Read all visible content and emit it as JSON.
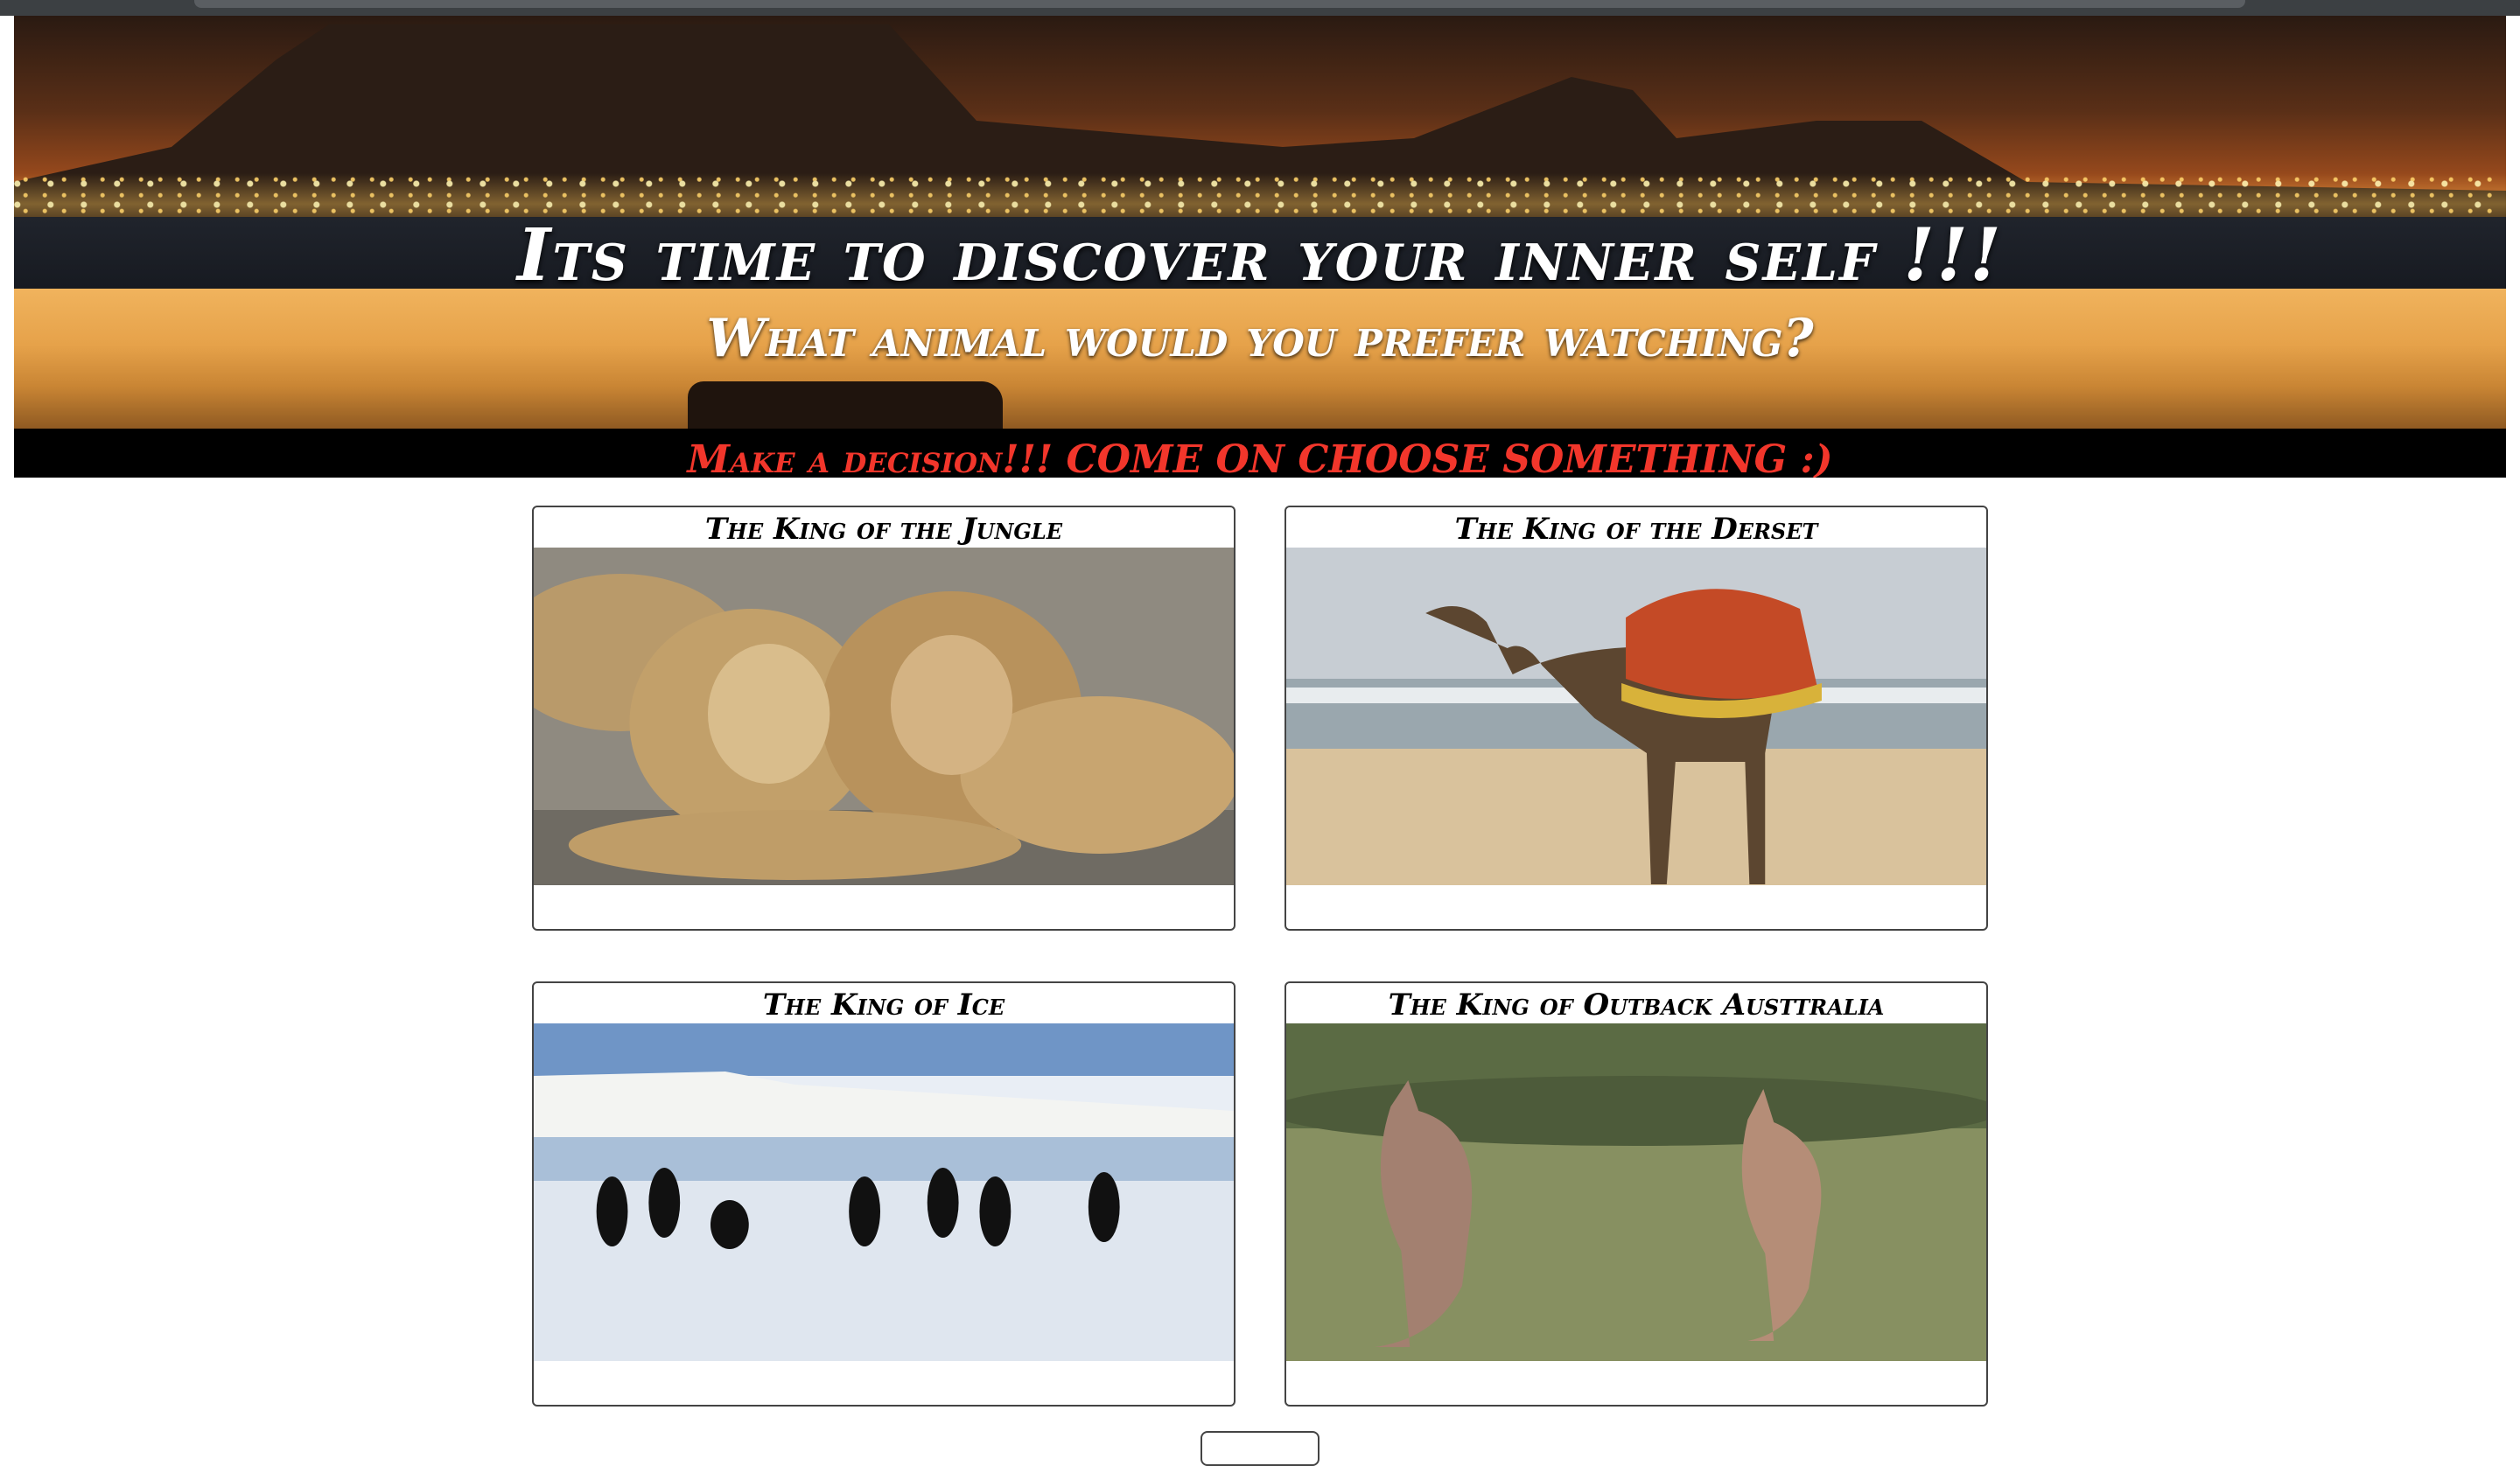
{
  "hero": {
    "title": "Its time to discover your inner self !!!",
    "subtitle": "What animal would you prefer watching?",
    "prompt": "Make a decision!!! COME ON CHOOSE SOMETHING :)"
  },
  "cards": [
    {
      "title": "The King of the Jungle",
      "image": "lions-photo"
    },
    {
      "title": "The King of the Derset",
      "image": "camel-photo"
    },
    {
      "title": "The King of Ice",
      "image": "penguins-photo"
    },
    {
      "title": "The King of Outback Austtralia",
      "image": "kangaroos-photo"
    }
  ],
  "colors": {
    "prompt": "#f2362b",
    "band": "#000000",
    "card_border": "#444444"
  }
}
